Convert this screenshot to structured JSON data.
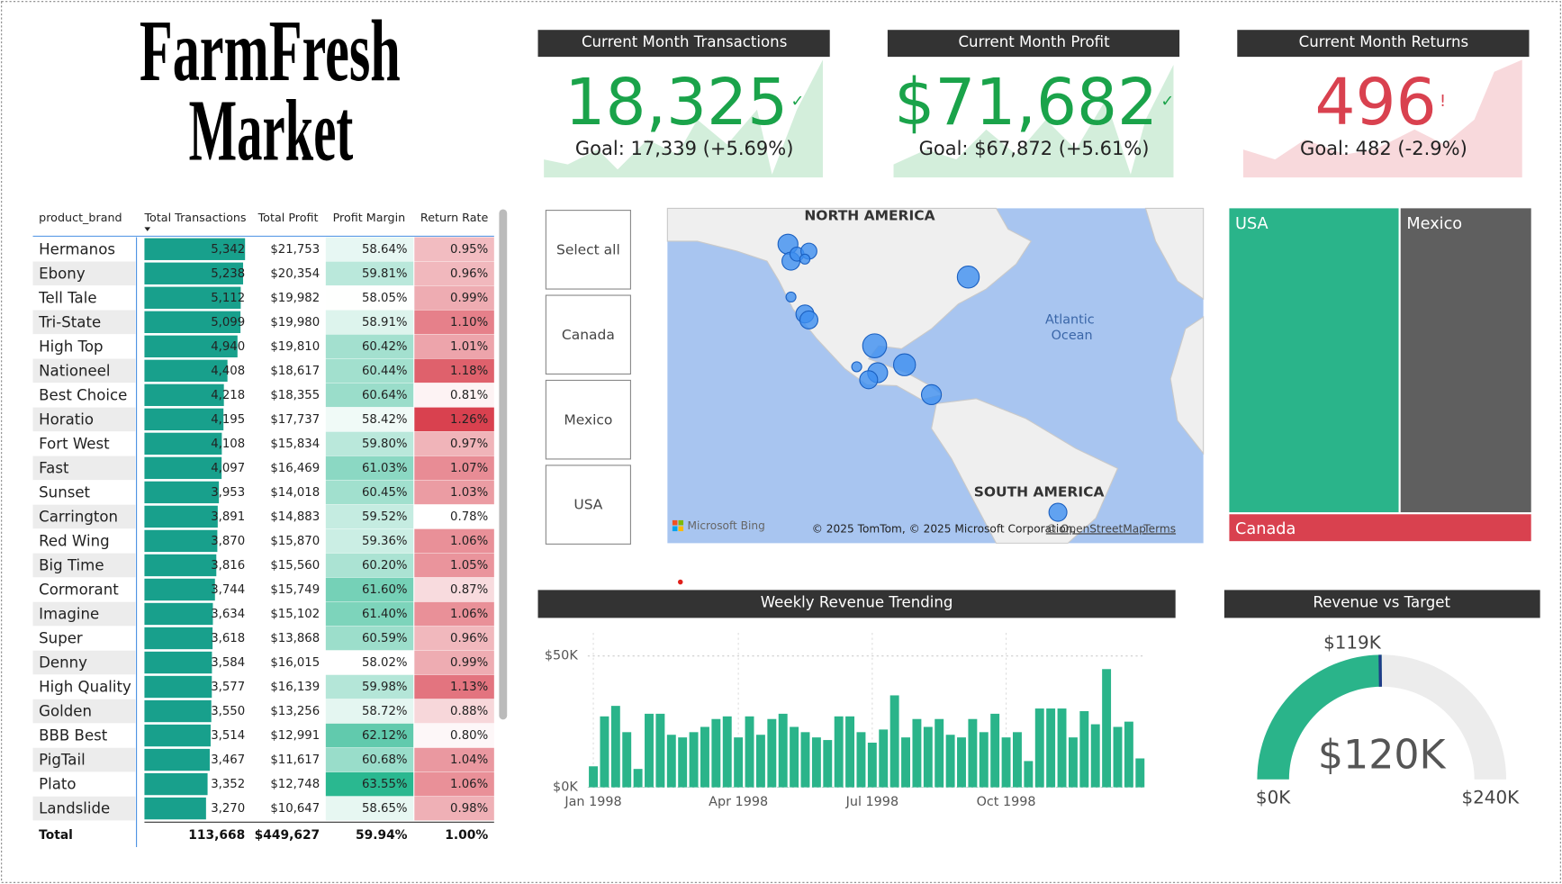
{
  "header": {
    "title_line1": "FarmFresh",
    "title_line2": "Market"
  },
  "kpis": [
    {
      "title": "Current Month Transactions",
      "value": "18,325",
      "icon": "✓",
      "goal": "Goal: 17,339 (+5.69%)",
      "color": "#1aa34a"
    },
    {
      "title": "Current Month Profit",
      "value": "$71,682",
      "icon": "✓",
      "goal": "Goal: $67,872 (+5.61%)",
      "color": "#1aa34a"
    },
    {
      "title": "Current Month Returns",
      "value": "496",
      "icon": "!",
      "goal": "Goal: 482 (-2.9%)",
      "color": "#d9414f"
    }
  ],
  "table": {
    "columns": [
      "product_brand",
      "Total Transactions",
      "Total Profit",
      "Profit Margin",
      "Return Rate"
    ],
    "rows": [
      [
        "Hermanos",
        "5,342",
        "$21,753",
        "58.64%",
        "0.95%"
      ],
      [
        "Ebony",
        "5,238",
        "$20,354",
        "59.81%",
        "0.96%"
      ],
      [
        "Tell Tale",
        "5,112",
        "$19,982",
        "58.05%",
        "0.99%"
      ],
      [
        "Tri-State",
        "5,099",
        "$19,980",
        "58.91%",
        "1.10%"
      ],
      [
        "High Top",
        "4,940",
        "$19,810",
        "60.42%",
        "1.01%"
      ],
      [
        "Nationeel",
        "4,408",
        "$18,617",
        "60.44%",
        "1.18%"
      ],
      [
        "Best Choice",
        "4,218",
        "$18,355",
        "60.64%",
        "0.81%"
      ],
      [
        "Horatio",
        "4,195",
        "$17,737",
        "58.42%",
        "1.26%"
      ],
      [
        "Fort West",
        "4,108",
        "$15,834",
        "59.80%",
        "0.97%"
      ],
      [
        "Fast",
        "4,097",
        "$16,469",
        "61.03%",
        "1.07%"
      ],
      [
        "Sunset",
        "3,953",
        "$14,018",
        "60.45%",
        "1.03%"
      ],
      [
        "Carrington",
        "3,891",
        "$14,883",
        "59.52%",
        "0.78%"
      ],
      [
        "Red Wing",
        "3,870",
        "$15,870",
        "59.36%",
        "1.06%"
      ],
      [
        "Big Time",
        "3,816",
        "$15,560",
        "60.20%",
        "1.05%"
      ],
      [
        "Cormorant",
        "3,744",
        "$15,749",
        "61.60%",
        "0.87%"
      ],
      [
        "Imagine",
        "3,634",
        "$15,102",
        "61.40%",
        "1.06%"
      ],
      [
        "Super",
        "3,618",
        "$13,868",
        "60.59%",
        "0.96%"
      ],
      [
        "Denny",
        "3,584",
        "$16,015",
        "58.02%",
        "0.99%"
      ],
      [
        "High Quality",
        "3,577",
        "$16,139",
        "59.98%",
        "1.13%"
      ],
      [
        "Golden",
        "3,550",
        "$13,256",
        "58.72%",
        "0.88%"
      ],
      [
        "BBB Best",
        "3,514",
        "$12,991",
        "62.12%",
        "0.80%"
      ],
      [
        "PigTail",
        "3,467",
        "$11,617",
        "60.68%",
        "1.04%"
      ],
      [
        "Plato",
        "3,352",
        "$12,748",
        "63.55%",
        "1.06%"
      ],
      [
        "Landslide",
        "3,270",
        "$10,647",
        "58.65%",
        "0.98%"
      ]
    ],
    "total": [
      "Total",
      "113,668",
      "$449,627",
      "59.94%",
      "1.00%"
    ]
  },
  "slicer": {
    "items": [
      "Select all",
      "Canada",
      "Mexico",
      "USA"
    ]
  },
  "map": {
    "north": "NORTH AMERICA",
    "ocean1": "Atlantic",
    "ocean2": "Ocean",
    "south": "SOUTH AMERICA",
    "brand": "Microsoft Bing",
    "copyright": "© 2025 TomTom, © 2025 Microsoft Corporation,",
    "osm": "© OpenStreetMap",
    "terms": "Terms"
  },
  "treemap": {
    "items": [
      "USA",
      "Mexico",
      "Canada"
    ]
  },
  "chart_data": [
    {
      "type": "bar",
      "title": "Weekly Revenue Trending",
      "color": "#2ab48a",
      "categories": [
        "Jan 1998",
        null,
        null,
        null,
        null,
        null,
        null,
        null,
        null,
        null,
        null,
        null,
        null,
        "Apr 1998",
        null,
        null,
        null,
        null,
        null,
        null,
        null,
        null,
        null,
        null,
        null,
        "Jul 1998",
        null,
        null,
        null,
        null,
        null,
        null,
        null,
        null,
        null,
        null,
        null,
        "Oct 1998",
        null,
        null,
        null,
        null,
        null,
        null,
        null,
        null,
        null,
        null,
        null,
        null
      ],
      "values": [
        8000,
        27000,
        31000,
        21000,
        7000,
        28000,
        28000,
        20000,
        19000,
        21000,
        23000,
        26000,
        27000,
        19000,
        27000,
        20000,
        26000,
        28000,
        23000,
        21000,
        19000,
        18000,
        27000,
        27000,
        21000,
        17000,
        22000,
        35000,
        19000,
        26000,
        23000,
        26000,
        20000,
        19000,
        26000,
        21000,
        28000,
        19000,
        21000,
        10000,
        30000,
        30000,
        30000,
        19000,
        29000,
        24000,
        45000,
        23000,
        25000,
        11000
      ],
      "ylim": [
        0,
        55000
      ],
      "yticks": [
        {
          "value": 0,
          "label": "$0K"
        },
        {
          "value": 50000,
          "label": "$50K"
        }
      ],
      "grid": true
    },
    {
      "type": "gauge",
      "title": "Revenue vs Target",
      "color": "#2ab48a",
      "value": 120000,
      "value_label": "$120K",
      "target": 119000,
      "target_label": "$119K",
      "min": {
        "value": 0,
        "label": "$0K"
      },
      "max": {
        "value": 240000,
        "label": "$240K"
      }
    }
  ]
}
